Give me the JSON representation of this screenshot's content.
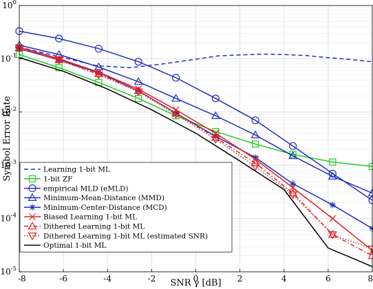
{
  "chart_data": {
    "type": "line",
    "title": "",
    "xlabel": "SNR γ [dB]",
    "ylabel": "Symbol Error Rate",
    "xlim": [
      -8,
      8
    ],
    "ylim": [
      1e-05,
      1
    ],
    "yscale": "log",
    "grid": true,
    "legend_position": "bottom-left",
    "x_ticks": [
      -8,
      -6,
      -4,
      -2,
      0,
      2,
      4,
      6,
      8
    ],
    "x_tick_labels": [
      "-8",
      "-6",
      "-4",
      "-2",
      "0",
      "2",
      "4",
      "6",
      "8"
    ],
    "y_ticks": [
      1e-05,
      0.0001,
      0.001,
      0.01,
      0.1,
      1
    ],
    "y_tick_labels": [
      {
        "base": "10",
        "exp": "-5"
      },
      {
        "base": "10",
        "exp": "-4"
      },
      {
        "base": "10",
        "exp": "-3"
      },
      {
        "base": "10",
        "exp": "-2"
      },
      {
        "base": "10",
        "exp": "-1"
      },
      {
        "base": "10",
        "exp": "0"
      }
    ],
    "series": [
      {
        "name": "Learning 1-bit ML",
        "color": "#1f2fbf",
        "dash": "6,4",
        "marker": "none",
        "x": [
          -8,
          -6,
          -4.5,
          -3,
          -1.5,
          0,
          1,
          2,
          3,
          4,
          5,
          6,
          7,
          8
        ],
        "y": [
          0.165,
          0.105,
          0.074,
          0.068,
          0.08,
          0.098,
          0.113,
          0.118,
          0.122,
          0.12,
          0.115,
          0.105,
          0.097,
          0.088
        ]
      },
      {
        "name": "1-bit ZF",
        "color": "#22cc22",
        "dash": "",
        "marker": "square",
        "x": [
          -8,
          -6.2,
          -4.4,
          -2.6,
          -0.9,
          0.9,
          2.7,
          4.4,
          6.2,
          8
        ],
        "y": [
          0.12,
          0.068,
          0.036,
          0.018,
          0.0085,
          0.0043,
          0.0025,
          0.0016,
          0.00115,
          0.00095
        ]
      },
      {
        "name": "empirical MLD (eMLD)",
        "color": "#1f2fbf",
        "dash": "",
        "marker": "circle",
        "x": [
          -8,
          -6.2,
          -4.4,
          -2.6,
          -0.9,
          0.9,
          2.7,
          4.4,
          6.2,
          8
        ],
        "y": [
          0.33,
          0.24,
          0.155,
          0.088,
          0.044,
          0.018,
          0.007,
          0.0023,
          0.0007,
          0.00022
        ]
      },
      {
        "name": "Minimum-Mean-Distance (MMD)",
        "color": "#1f2fbf",
        "dash": "",
        "marker": "triangle",
        "x": [
          -8,
          -6.2,
          -4.4,
          -2.6,
          -0.9,
          0.9,
          2.7,
          4.4,
          6.2,
          8
        ],
        "y": [
          0.18,
          0.12,
          0.07,
          0.037,
          0.018,
          0.0085,
          0.0037,
          0.0015,
          0.00062,
          0.0003
        ]
      },
      {
        "name": "Minimum-Center-Distance (MCD)",
        "color": "#1f2fbf",
        "dash": "",
        "marker": "asterisk",
        "x": [
          -8,
          -6.2,
          -4.4,
          -2.6,
          -0.9,
          0.9,
          2.7,
          4.4,
          6.2,
          8
        ],
        "y": [
          0.155,
          0.095,
          0.055,
          0.025,
          0.0095,
          0.0035,
          0.0014,
          0.00045,
          0.00018,
          6.5e-05
        ]
      },
      {
        "name": "Biased Learning 1-bit ML",
        "color": "#e02020",
        "dash": "",
        "marker": "x",
        "x": [
          -8,
          -6.2,
          -4.4,
          -2.6,
          -0.9,
          0.9,
          2.7,
          4.4,
          6.2,
          8
        ],
        "y": [
          0.165,
          0.1,
          0.056,
          0.027,
          0.011,
          0.004,
          0.0013,
          0.00038,
          0.0001,
          2.5e-05
        ]
      },
      {
        "name": "Dithered Learning 1-bit ML",
        "color": "#e02020",
        "dash": "6,3,1.5,3",
        "marker": "triangle-open",
        "x": [
          -8,
          -6.2,
          -4.4,
          -2.6,
          -0.9,
          0.9,
          2.7,
          4.4,
          6.2,
          8
        ],
        "y": [
          0.16,
          0.095,
          0.052,
          0.025,
          0.0095,
          0.0033,
          0.0011,
          0.0003,
          5e-05,
          2e-05
        ]
      },
      {
        "name": "Dithered Learning 1-bit ML (estimated SNR)",
        "color": "#e02020",
        "dash": "1.5,2.5",
        "marker": "triangle-down",
        "x": [
          -8,
          -6.2,
          -4.4,
          -2.6,
          -0.9,
          0.9,
          2.7,
          4.4,
          6.2,
          8
        ],
        "y": [
          0.16,
          0.095,
          0.05,
          0.024,
          0.009,
          0.0031,
          0.00095,
          0.00028,
          5e-05,
          2.7e-05
        ]
      },
      {
        "name": "Optimal 1-bit ML",
        "color": "#000000",
        "dash": "",
        "marker": "none",
        "x": [
          -8,
          -6,
          -4,
          -2,
          0,
          2,
          4,
          6,
          8
        ],
        "y": [
          0.105,
          0.058,
          0.027,
          0.011,
          0.004,
          0.0012,
          0.00035,
          2.8e-05,
          1.25e-05
        ]
      }
    ]
  }
}
